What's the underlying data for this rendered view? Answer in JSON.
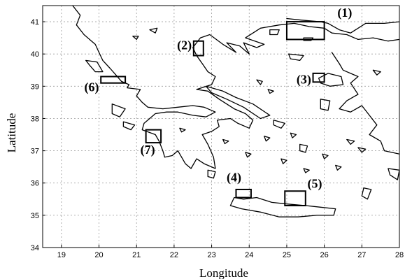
{
  "figure": {
    "xlabel": "Longitude",
    "ylabel": "Latitude",
    "xlim": [
      18.5,
      28
    ],
    "ylim": [
      34,
      41.5
    ],
    "x_ticks": [
      "19",
      "20",
      "21",
      "22",
      "23",
      "24",
      "25",
      "26",
      "27",
      "28"
    ],
    "y_ticks": [
      "34",
      "35",
      "36",
      "37",
      "38",
      "39",
      "40",
      "41"
    ],
    "grid": true
  },
  "regions": [
    {
      "label": "(1)",
      "lon": [
        25.0,
        26.0
      ],
      "lat": [
        40.45,
        41.0
      ]
    },
    {
      "label": "(2)",
      "lon": [
        22.52,
        22.78
      ],
      "lat": [
        39.95,
        40.4
      ]
    },
    {
      "label": "(3)",
      "lon": [
        25.7,
        26.0
      ],
      "lat": [
        39.13,
        39.4
      ]
    },
    {
      "label": "(4)",
      "lon": [
        23.65,
        24.05
      ],
      "lat": [
        35.55,
        35.8
      ]
    },
    {
      "label": "(5)",
      "lon": [
        24.95,
        25.5
      ],
      "lat": [
        35.3,
        35.75
      ]
    },
    {
      "label": "(6)",
      "lon": [
        20.05,
        20.7
      ],
      "lat": [
        39.1,
        39.3
      ]
    },
    {
      "label": "(7)",
      "lon": [
        21.25,
        21.65
      ],
      "lat": [
        37.25,
        37.65
      ]
    }
  ]
}
